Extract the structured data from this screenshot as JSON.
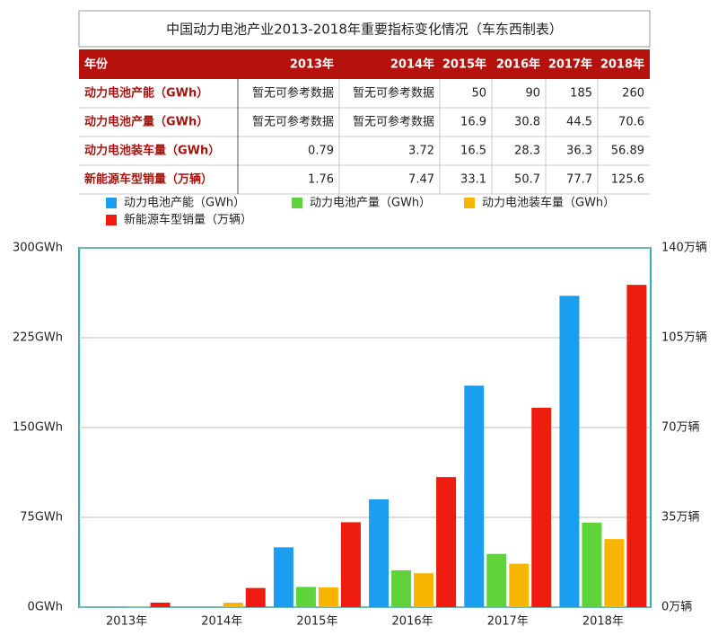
{
  "table": {
    "title": "中国动力电池产业2013-2018年重要指标变化情况（车东西制表）",
    "header": [
      "年份",
      "2013年",
      "2014年",
      "2015年",
      "2016年",
      "2017年",
      "2018年"
    ],
    "rows": [
      [
        "动力电池产能（GWh）",
        "暂无可参考数据",
        "暂无可参考数据",
        "50",
        "90",
        "185",
        "260"
      ],
      [
        "动力电池产量（GWh）",
        "暂无可参考数据",
        "暂无可参考数据",
        "16.9",
        "30.8",
        "44.5",
        "70.6"
      ],
      [
        "动力电池装车量（GWh）",
        "0.79",
        "3.72",
        "16.5",
        "28.3",
        "36.3",
        "56.89"
      ],
      [
        "新能源车型销量（万辆）",
        "1.76",
        "7.47",
        "33.1",
        "50.7",
        "77.7",
        "125.6"
      ]
    ]
  },
  "chart_data": {
    "type": "bar",
    "categories": [
      "2013年",
      "2014年",
      "2015年",
      "2016年",
      "2017年",
      "2018年"
    ],
    "series": [
      {
        "name": "动力电池产能（GWh）",
        "color": "#1a9ff0",
        "values": [
          null,
          null,
          50,
          90,
          185,
          260
        ]
      },
      {
        "name": "动力电池产量（GWh）",
        "color": "#5ed33a",
        "values": [
          null,
          null,
          16.9,
          30.8,
          44.5,
          70.6
        ]
      },
      {
        "name": "动力电池装车量（GWh）",
        "color": "#f7b500",
        "values": [
          0.79,
          3.72,
          16.5,
          28.3,
          36.3,
          56.89
        ]
      },
      {
        "name": "新能源车型销量（万辆）",
        "color": "#ee1c0e",
        "values": [
          1.76,
          7.47,
          33.1,
          50.7,
          77.7,
          125.6
        ],
        "axis": "y2"
      }
    ],
    "ylim": [
      0,
      300
    ],
    "yticks": [
      {
        "value": 0,
        "label": "0GWh"
      },
      {
        "value": 75,
        "label": "75GWh"
      },
      {
        "value": 150,
        "label": "150GWh"
      },
      {
        "value": 225,
        "label": "225GWh"
      },
      {
        "value": 300,
        "label": "300GWh"
      }
    ],
    "y2lim": [
      0,
      140
    ],
    "y2ticks": [
      {
        "value": 0,
        "label": "0万辆"
      },
      {
        "value": 35,
        "label": "35万辆"
      },
      {
        "value": 70,
        "label": "70万辆"
      },
      {
        "value": 105,
        "label": "105万辆"
      },
      {
        "value": 140,
        "label": "140万辆"
      }
    ],
    "grid": true
  }
}
